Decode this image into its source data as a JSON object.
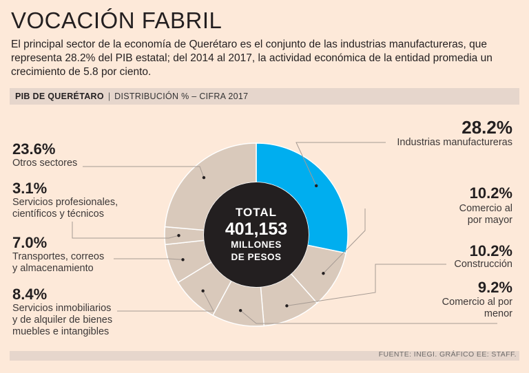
{
  "header": {
    "title": "VOCACIÓN FABRIL",
    "intro": "El principal sector de la economía de Querétaro es el conjunto de las industrias manufactureras, que representa 28.2% del PIB estatal; del 2014 al 2017, la actividad económica de la entidad promedia un crecimiento de 5.8 por ciento."
  },
  "band": {
    "strong": "PIB DE QUERÉTARO",
    "sep": "|",
    "rest": "DISTRIBUCIÓN % – CIFRA 2017"
  },
  "center": {
    "line1": "TOTAL",
    "line2": "401,153",
    "line3": "MILLONES",
    "line4": "DE PESOS"
  },
  "source": "FUENTE: INEGI. GRÁFICO EE: STAFF.",
  "colors": {
    "highlight": "#00aeef",
    "segment": "#d9c9bb",
    "center": "#231f20",
    "background": "#fde9d9"
  },
  "chart_data": {
    "type": "pie",
    "title": "PIB DE QUERÉTARO",
    "subtitle": "DISTRIBUCIÓN % – CIFRA 2017",
    "total_label": "TOTAL 401,153 MILLONES DE PESOS",
    "slices": [
      {
        "name": "Industrias manufactureras",
        "value": 28.2,
        "value_label": "28.2%",
        "highlight": true
      },
      {
        "name": "Comercio al por mayor",
        "value": 10.2,
        "value_label": "10.2%"
      },
      {
        "name": "Construcción",
        "value": 10.2,
        "value_label": "10.2%"
      },
      {
        "name": "Comercio al por menor",
        "value": 9.2,
        "value_label": "9.2%"
      },
      {
        "name": "Servicios inmobiliarios y de alquiler de bienes muebles e intangibles",
        "value": 8.4,
        "value_label": "8.4%"
      },
      {
        "name": "Transportes, correos y almacenamiento",
        "value": 7.0,
        "value_label": "7.0%"
      },
      {
        "name": "Servicios profesionales, científicos y técnicos",
        "value": 3.1,
        "value_label": "3.1%"
      },
      {
        "name": "Otros sectores",
        "value": 23.6,
        "value_label": "23.6%"
      }
    ],
    "label_lines": {
      "s0": "Industrias manufactureras",
      "s1": [
        "Comercio al",
        "por mayor"
      ],
      "s2": "Construcción",
      "s3": [
        "Comercio al por",
        "menor"
      ],
      "s4": [
        "Servicios inmobiliarios",
        "y de alquiler de bienes",
        "muebles e intangibles"
      ],
      "s5": [
        "Transportes, correos",
        "y almacenamiento"
      ],
      "s6": [
        "Servicios profesionales,",
        "científicos y técnicos"
      ],
      "s7": "Otros sectores"
    }
  }
}
